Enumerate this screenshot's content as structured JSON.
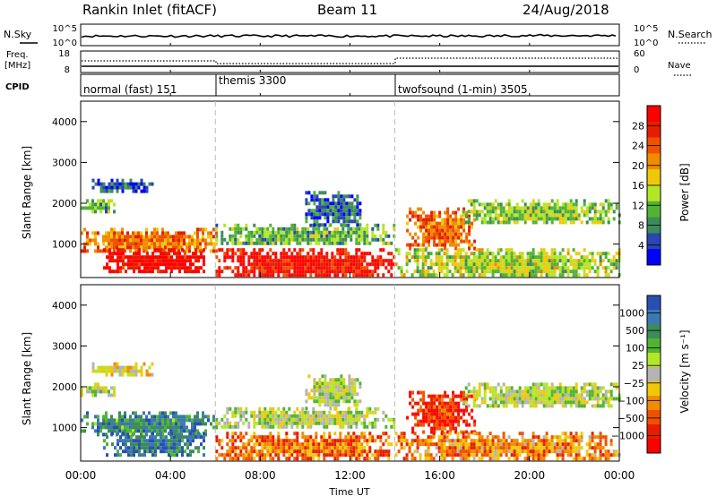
{
  "header": {
    "title": "Rankin Inlet (fitACF)",
    "beam": "Beam 11",
    "date": "24/Aug/2018"
  },
  "top_panels": {
    "nsky_label": "N.Sky",
    "nsearch_label": "N.Search",
    "nsky_ticks": [
      "10^5",
      "10^0"
    ],
    "nsearch_ticks": [
      "10^5",
      "10^0"
    ],
    "freq_label_1": "Freq.",
    "freq_label_2": "[MHz]",
    "freq_ticks": [
      "18",
      "8"
    ],
    "nave_label": "Nave",
    "nave_ticks": [
      "60",
      "0"
    ],
    "cpid_label": "CPID",
    "cpid_segments": [
      {
        "label": "normal (fast) 151",
        "start_hour": 0
      },
      {
        "label": "themis 3300",
        "start_hour": 6
      },
      {
        "label": "twofsound (1-min) 3505",
        "start_hour": 14
      }
    ]
  },
  "chart_data": [
    {
      "type": "heatmap",
      "panel": "power",
      "ylabel": "Slant Range [km]",
      "ylim": [
        180,
        4500
      ],
      "y_ticks": [
        1000,
        2000,
        3000,
        4000
      ],
      "xlim": [
        0,
        24
      ],
      "x_ticks": [
        "00:00",
        "04:00",
        "08:00",
        "12:00",
        "16:00",
        "20:00",
        "00:00"
      ],
      "x_tick_hours": [
        0,
        4,
        8,
        12,
        16,
        20,
        24
      ],
      "mode_change_hours": [
        6,
        14
      ],
      "colorbar": {
        "label": "Power [dB]",
        "ticks": [
          "4",
          "8",
          "12",
          "16",
          "20",
          "24",
          "28"
        ],
        "colors": [
          "#0000ff",
          "#2846b4",
          "#3c8c5a",
          "#50b432",
          "#b4e628",
          "#f0c80a",
          "#f08c00",
          "#f05000",
          "#e61e00",
          "#ff0000"
        ]
      },
      "echo_regions": [
        {
          "t": [
            0.5,
            3.2
          ],
          "r": [
            2300,
            2600
          ],
          "level": 0.15
        },
        {
          "t": [
            0.0,
            1.5
          ],
          "r": [
            1800,
            2100
          ],
          "level": 0.35
        },
        {
          "t": [
            0.0,
            6.0
          ],
          "r": [
            800,
            1400
          ],
          "level": 0.7
        },
        {
          "t": [
            1.0,
            5.5
          ],
          "r": [
            300,
            900
          ],
          "level": 0.95
        },
        {
          "t": [
            6.0,
            14.0
          ],
          "r": [
            200,
            900
          ],
          "level": 0.9
        },
        {
          "t": [
            6.0,
            14.0
          ],
          "r": [
            1000,
            1500
          ],
          "level": 0.35
        },
        {
          "t": [
            10.0,
            12.5
          ],
          "r": [
            1500,
            2300
          ],
          "level": 0.2
        },
        {
          "t": [
            14.5,
            17.5
          ],
          "r": [
            900,
            1900
          ],
          "level": 0.7
        },
        {
          "t": [
            14.0,
            24.0
          ],
          "r": [
            200,
            900
          ],
          "level": 0.45
        },
        {
          "t": [
            17.0,
            24.0
          ],
          "r": [
            1500,
            2100
          ],
          "level": 0.4
        }
      ]
    },
    {
      "type": "heatmap",
      "panel": "velocity",
      "ylabel": "Slant Range [km]",
      "xlabel": "Time UT",
      "ylim": [
        180,
        4500
      ],
      "y_ticks": [
        1000,
        2000,
        3000,
        4000
      ],
      "xlim": [
        0,
        24
      ],
      "x_ticks": [
        "00:00",
        "04:00",
        "08:00",
        "12:00",
        "16:00",
        "20:00",
        "00:00"
      ],
      "x_tick_hours": [
        0,
        4,
        8,
        12,
        16,
        20,
        24
      ],
      "mode_change_hours": [
        6,
        14
      ],
      "colorbar": {
        "label": "Velocity [m s⁻¹]",
        "ticks": [
          "1000",
          "500",
          "100",
          "25",
          "−25",
          "−100",
          "−500",
          "−1000"
        ],
        "colors": [
          "#2850b4",
          "#3c78b4",
          "#3c8c5a",
          "#50b432",
          "#b4e628",
          "#b4b4b4",
          "#f0c80a",
          "#f08c00",
          "#f05000",
          "#e61e00",
          "#ff0000"
        ]
      },
      "echo_regions": [
        {
          "t": [
            0.5,
            3.2
          ],
          "r": [
            2300,
            2600
          ],
          "level": 0.55
        },
        {
          "t": [
            0.0,
            1.5
          ],
          "r": [
            1800,
            2100
          ],
          "level": 0.45
        },
        {
          "t": [
            0.0,
            6.0
          ],
          "r": [
            800,
            1400
          ],
          "level": 0.2
        },
        {
          "t": [
            1.0,
            5.5
          ],
          "r": [
            300,
            900
          ],
          "level": 0.15
        },
        {
          "t": [
            6.0,
            14.0
          ],
          "r": [
            200,
            900
          ],
          "level": 0.75
        },
        {
          "t": [
            6.0,
            14.0
          ],
          "r": [
            1000,
            1500
          ],
          "level": 0.45
        },
        {
          "t": [
            10.0,
            12.5
          ],
          "r": [
            1500,
            2300
          ],
          "level": 0.45
        },
        {
          "t": [
            14.5,
            17.5
          ],
          "r": [
            900,
            1900
          ],
          "level": 0.85
        },
        {
          "t": [
            14.0,
            24.0
          ],
          "r": [
            200,
            900
          ],
          "level": 0.7
        },
        {
          "t": [
            17.0,
            24.0
          ],
          "r": [
            1500,
            2100
          ],
          "level": 0.45
        }
      ]
    }
  ]
}
